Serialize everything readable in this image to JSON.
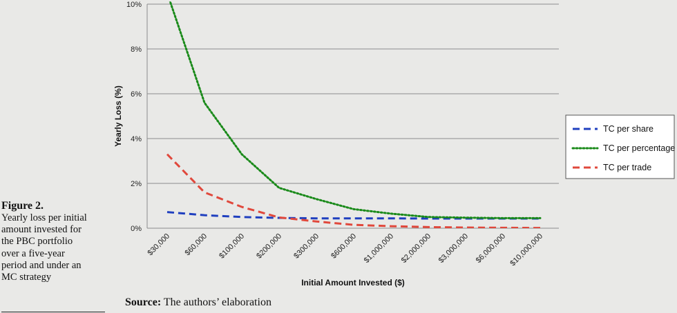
{
  "caption": {
    "figure_label": "Figure 2.",
    "lines": [
      "Yearly loss per initial",
      "amount invested for",
      "the PBC portfolio",
      "over a five-year",
      "period and under an",
      "MC strategy"
    ]
  },
  "source": {
    "label": "Source:",
    "text": " The authors’ elaboration"
  },
  "chart_data": {
    "type": "line",
    "xlabel": "Initial Amount Invested ($)",
    "ylabel": "Yearly Loss (%)",
    "ylim": [
      0,
      10
    ],
    "y_ticks": [
      "0%",
      "2%",
      "4%",
      "6%",
      "8%",
      "10%"
    ],
    "y_tick_values": [
      0,
      2,
      4,
      6,
      8,
      10
    ],
    "categories": [
      "$30,000",
      "$60,000",
      "$100,000",
      "$200,000",
      "$300,000",
      "$600,000",
      "$1,000,000",
      "$2,000,000",
      "$3,000,000",
      "$6,000,000",
      "$10,000,000"
    ],
    "grid": true,
    "legend_position": "right",
    "series": [
      {
        "name": "TC per share",
        "color": "#1f3fbf",
        "style": "dashed",
        "values": [
          0.72,
          0.58,
          0.5,
          0.46,
          0.44,
          0.44,
          0.44,
          0.43,
          0.43,
          0.43,
          0.43
        ]
      },
      {
        "name": "TC per percentage",
        "color": "#1a8a1a",
        "style": "dotted",
        "values": [
          10.5,
          5.6,
          3.3,
          1.8,
          1.3,
          0.85,
          0.65,
          0.5,
          0.47,
          0.45,
          0.45
        ]
      },
      {
        "name": "TC per trade",
        "color": "#e0483c",
        "style": "dashed",
        "values": [
          3.3,
          1.6,
          0.95,
          0.48,
          0.3,
          0.15,
          0.09,
          0.05,
          0.03,
          0.02,
          0.01
        ]
      }
    ]
  }
}
